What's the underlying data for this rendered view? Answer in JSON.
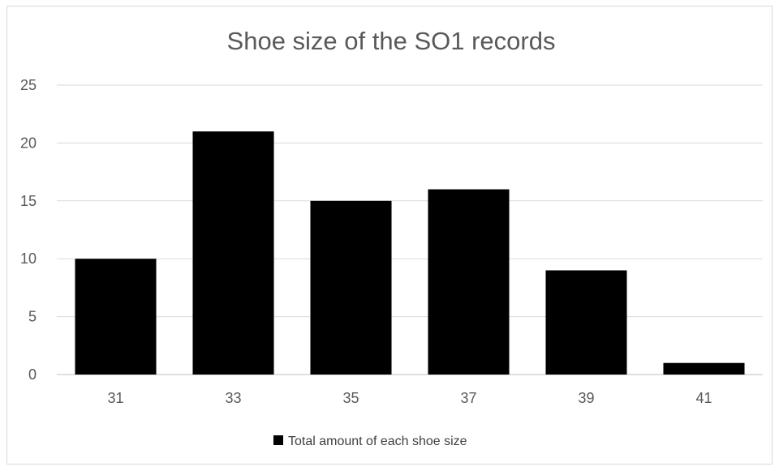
{
  "chart_data": {
    "type": "bar",
    "title": "Shoe size of the SO1 records",
    "xlabel": "",
    "ylabel": "",
    "categories": [
      "31",
      "33",
      "35",
      "37",
      "39",
      "41"
    ],
    "series": [
      {
        "name": "Total amount of each shoe size",
        "values": [
          10,
          21,
          15,
          16,
          9,
          1
        ],
        "color": "#000000"
      }
    ],
    "ylim": [
      0,
      25
    ],
    "yticks": [
      0,
      5,
      10,
      15,
      20,
      25
    ],
    "grid": true,
    "legend_position": "bottom"
  }
}
